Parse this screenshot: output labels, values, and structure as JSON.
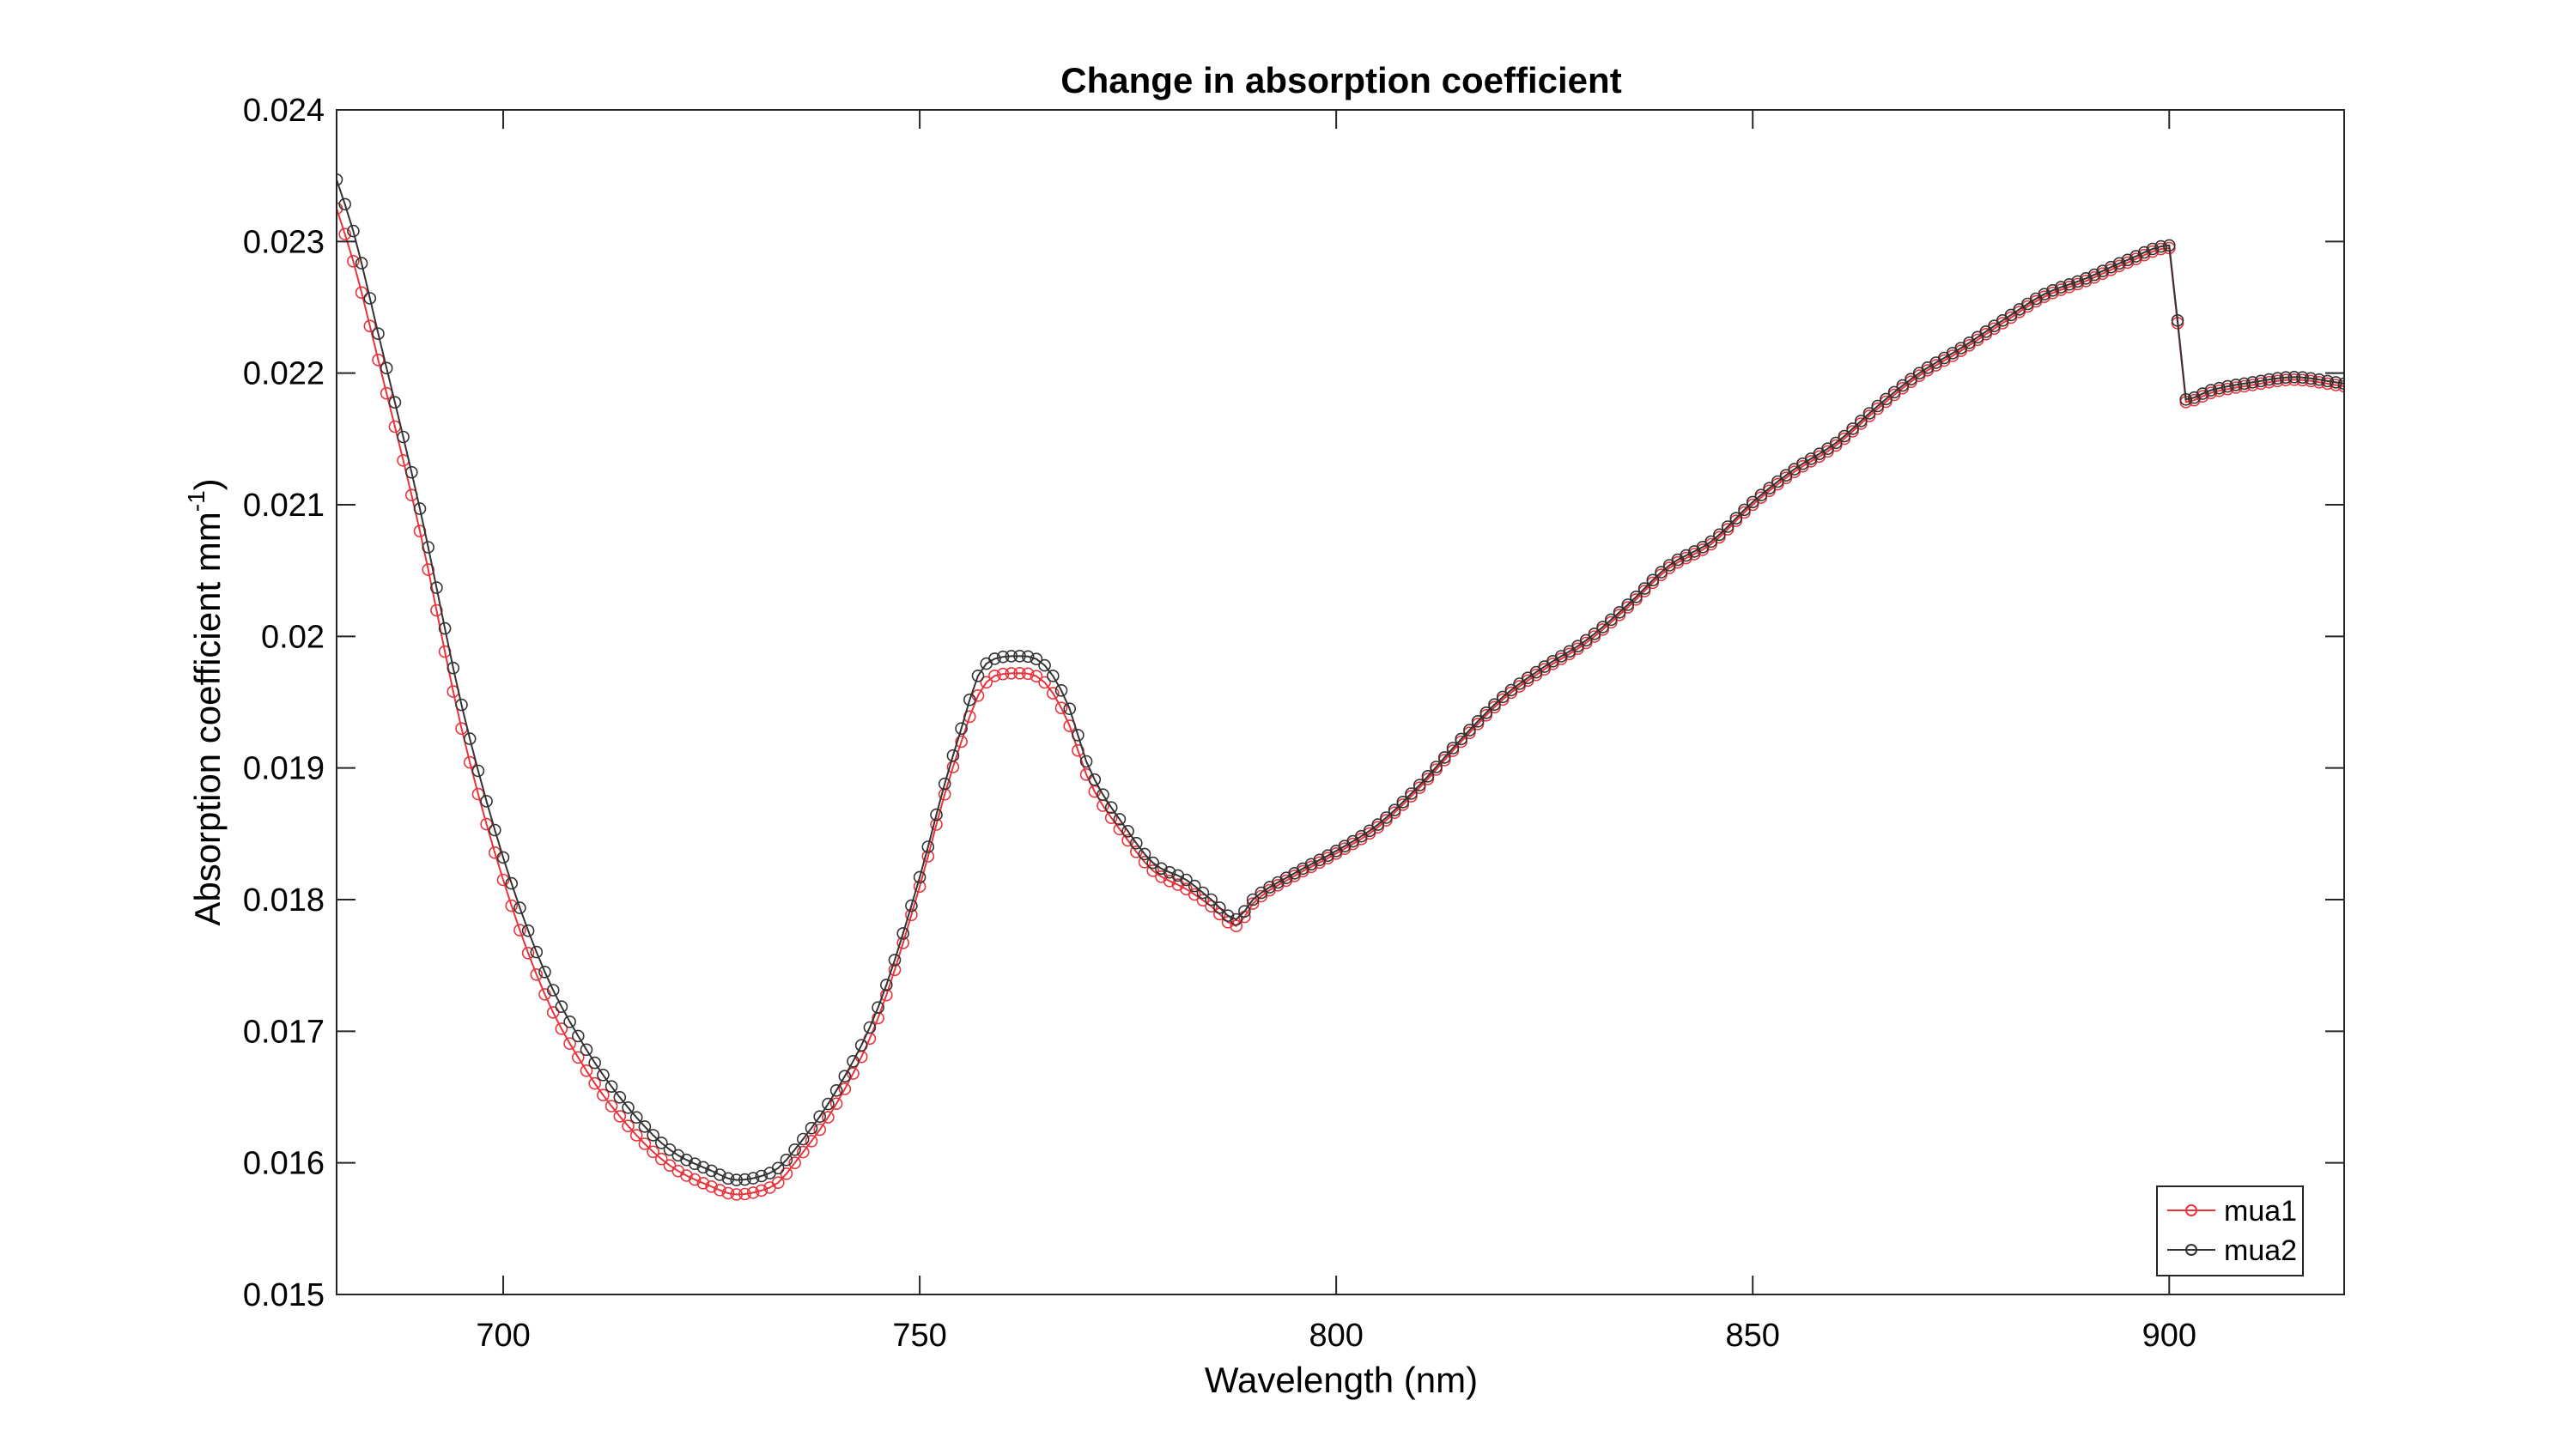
{
  "chart_data": {
    "type": "line",
    "title": "Change in absorption coefficient",
    "xlabel": "Wavelength (nm)",
    "ylabel_main": "Absorption coefficient mm",
    "ylabel_sup": "-1",
    "ylabel_close": ")",
    "xlim": [
      680,
      921
    ],
    "ylim": [
      0.015,
      0.024
    ],
    "xticks": [
      700,
      750,
      800,
      850,
      900
    ],
    "xtick_labels": [
      "700",
      "750",
      "800",
      "850",
      "900"
    ],
    "yticks": [
      0.015,
      0.016,
      0.017,
      0.018,
      0.019,
      0.02,
      0.021,
      0.022,
      0.023,
      0.024
    ],
    "ytick_labels": [
      "0.015",
      "0.016",
      "0.017",
      "0.018",
      "0.019",
      "0.02",
      "0.021",
      "0.022",
      "0.023",
      "0.024"
    ],
    "grid": false,
    "legend_position": "bottom-right",
    "marker": "circle",
    "series": [
      {
        "name": "mua1",
        "color": "#e8333a",
        "knots": [
          [
            680,
            0.02325
          ],
          [
            682,
            0.02285
          ],
          [
            685,
            0.0221
          ],
          [
            690,
            0.0208
          ],
          [
            695,
            0.0193
          ],
          [
            700,
            0.01815
          ],
          [
            705,
            0.01728
          ],
          [
            710,
            0.0167
          ],
          [
            715,
            0.01628
          ],
          [
            720,
            0.01598
          ],
          [
            725,
            0.01582
          ],
          [
            728,
            0.01576
          ],
          [
            731,
            0.01579
          ],
          [
            733,
            0.01585
          ],
          [
            735,
            0.016
          ],
          [
            740,
            0.01645
          ],
          [
            745,
            0.0171
          ],
          [
            750,
            0.0181
          ],
          [
            753,
            0.0188
          ],
          [
            755,
            0.0192
          ],
          [
            757,
            0.01955
          ],
          [
            759,
            0.0197
          ],
          [
            762,
            0.01972
          ],
          [
            765,
            0.01965
          ],
          [
            768,
            0.01932
          ],
          [
            770,
            0.01895
          ],
          [
            775,
            0.01845
          ],
          [
            778,
            0.01822
          ],
          [
            782,
            0.01808
          ],
          [
            785,
            0.01795
          ],
          [
            788,
            0.0178
          ],
          [
            790,
            0.01797
          ],
          [
            795,
            0.01818
          ],
          [
            800,
            0.01835
          ],
          [
            805,
            0.01855
          ],
          [
            810,
            0.01885
          ],
          [
            815,
            0.0192
          ],
          [
            820,
            0.01952
          ],
          [
            825,
            0.01975
          ],
          [
            830,
            0.01995
          ],
          [
            835,
            0.02022
          ],
          [
            840,
            0.02052
          ],
          [
            845,
            0.0207
          ],
          [
            850,
            0.021
          ],
          [
            855,
            0.02125
          ],
          [
            860,
            0.02145
          ],
          [
            865,
            0.02173
          ],
          [
            870,
            0.02198
          ],
          [
            875,
            0.02217
          ],
          [
            880,
            0.02238
          ],
          [
            885,
            0.02258
          ],
          [
            890,
            0.0227
          ],
          [
            895,
            0.02284
          ],
          [
            900,
            0.02295
          ],
          [
            901,
            0.02238
          ],
          [
            902,
            0.02178
          ],
          [
            905,
            0.02185
          ],
          [
            910,
            0.02191
          ],
          [
            915,
            0.02195
          ],
          [
            920,
            0.02191
          ],
          [
            921,
            0.0219
          ]
        ]
      },
      {
        "name": "mua2",
        "color": "#333333",
        "knots": [
          [
            680,
            0.02347
          ],
          [
            682,
            0.02308
          ],
          [
            685,
            0.0223
          ],
          [
            690,
            0.02097
          ],
          [
            695,
            0.01948
          ],
          [
            700,
            0.01832
          ],
          [
            705,
            0.01745
          ],
          [
            710,
            0.01686
          ],
          [
            715,
            0.01642
          ],
          [
            720,
            0.0161
          ],
          [
            725,
            0.01594
          ],
          [
            728,
            0.01587
          ],
          [
            731,
            0.0159
          ],
          [
            733,
            0.01596
          ],
          [
            735,
            0.0161
          ],
          [
            740,
            0.01655
          ],
          [
            745,
            0.01718
          ],
          [
            750,
            0.01817
          ],
          [
            753,
            0.01888
          ],
          [
            755,
            0.0193
          ],
          [
            757,
            0.0197
          ],
          [
            759,
            0.01983
          ],
          [
            762,
            0.01985
          ],
          [
            765,
            0.01978
          ],
          [
            768,
            0.01945
          ],
          [
            770,
            0.01905
          ],
          [
            775,
            0.01852
          ],
          [
            778,
            0.01828
          ],
          [
            782,
            0.01815
          ],
          [
            785,
            0.018
          ],
          [
            788,
            0.01785
          ],
          [
            790,
            0.018
          ],
          [
            795,
            0.0182
          ],
          [
            800,
            0.01837
          ],
          [
            805,
            0.01857
          ],
          [
            810,
            0.01887
          ],
          [
            815,
            0.01922
          ],
          [
            820,
            0.01954
          ],
          [
            825,
            0.01977
          ],
          [
            830,
            0.01997
          ],
          [
            835,
            0.02024
          ],
          [
            840,
            0.02054
          ],
          [
            845,
            0.02072
          ],
          [
            850,
            0.02102
          ],
          [
            855,
            0.02127
          ],
          [
            860,
            0.02147
          ],
          [
            865,
            0.02175
          ],
          [
            870,
            0.022
          ],
          [
            875,
            0.02219
          ],
          [
            880,
            0.0224
          ],
          [
            885,
            0.0226
          ],
          [
            890,
            0.02272
          ],
          [
            895,
            0.02286
          ],
          [
            900,
            0.02297
          ],
          [
            901,
            0.0224
          ],
          [
            902,
            0.0218
          ],
          [
            905,
            0.02187
          ],
          [
            910,
            0.02193
          ],
          [
            915,
            0.02197
          ],
          [
            920,
            0.02193
          ],
          [
            921,
            0.02192
          ]
        ]
      }
    ]
  }
}
